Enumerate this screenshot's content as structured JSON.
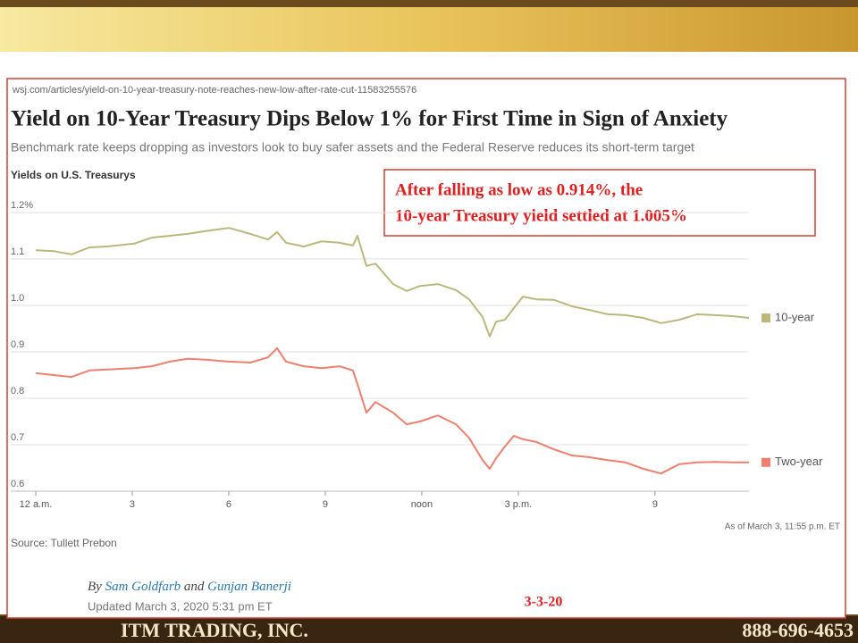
{
  "url": "wsj.com/articles/yield-on-10-year-treasury-note-reaches-new-low-after-rate-cut-11583255576",
  "chart_data": {
    "type": "line",
    "title": "Yield on 10-Year Treasury Dips Below 1% for First Time in Sign of Anxiety",
    "subtitle": "Benchmark rate keeps dropping as investors look to buy safer assets and the Federal Reserve reduces its short-term target",
    "chart_label": "Yields on U.S. Treasurys",
    "x": [
      0,
      0.56,
      1.11,
      1.67,
      2.22,
      3.06,
      3.61,
      4.17,
      4.72,
      5.28,
      6,
      6.67,
      7.22,
      7.5,
      7.78,
      8.33,
      8.89,
      9.44,
      9.86,
      10,
      10.28,
      10.56,
      11.11,
      11.53,
      11.94,
      12.5,
      13.06,
      13.47,
      13.89,
      14.11,
      14.31,
      14.58,
      14.86,
      15.14,
      15.56,
      16.11,
      16.67,
      17.22,
      17.78,
      18.33,
      18.89,
      19.44,
      20,
      20.56,
      21.11,
      21.67,
      22.17
    ],
    "series": [
      {
        "name": "10-year",
        "color": "#bdb77b",
        "values": [
          1.119,
          1.117,
          1.11,
          1.125,
          1.127,
          1.133,
          1.146,
          1.15,
          1.154,
          1.16,
          1.167,
          1.154,
          1.142,
          1.158,
          1.135,
          1.127,
          1.138,
          1.135,
          1.129,
          1.15,
          1.085,
          1.09,
          1.046,
          1.031,
          1.042,
          1.046,
          1.033,
          1.013,
          0.975,
          0.933,
          0.965,
          0.969,
          0.994,
          1.019,
          1.013,
          1.012,
          0.998,
          0.99,
          0.981,
          0.979,
          0.973,
          0.962,
          0.969,
          0.981,
          0.979,
          0.977,
          0.973
        ]
      },
      {
        "name": "Two-year",
        "color": "#ef7f6e",
        "values": [
          0.854,
          0.85,
          0.846,
          0.86,
          0.862,
          0.865,
          0.869,
          0.879,
          0.885,
          0.883,
          0.879,
          0.877,
          0.888,
          0.908,
          0.879,
          0.869,
          0.865,
          0.869,
          0.86,
          0.831,
          0.769,
          0.792,
          0.769,
          0.744,
          0.75,
          0.763,
          0.744,
          0.715,
          0.667,
          0.648,
          0.671,
          0.696,
          0.719,
          0.712,
          0.706,
          0.69,
          0.677,
          0.673,
          0.667,
          0.662,
          0.648,
          0.638,
          0.658,
          0.662,
          0.663,
          0.662,
          0.662
        ]
      }
    ],
    "xlim": [
      0,
      22.17
    ],
    "xticks": [
      {
        "value": 0,
        "label": "12 a.m."
      },
      3,
      6,
      9,
      {
        "value": 12,
        "label": "noon"
      },
      {
        "value": 15,
        "label": "3 p.m."
      },
      {
        "value": 19.25,
        "label": "9"
      }
    ],
    "ylim": [
      0.6,
      1.2
    ],
    "yticks": [
      0.6,
      0.7,
      0.8,
      0.9,
      {
        "value": 1.0,
        "label": "1.0"
      },
      1.1,
      {
        "value": 1.2,
        "label": "1.2%"
      }
    ],
    "grid": true,
    "as_of": "As of March 3, 11:55 p.m. ET",
    "source": "Source: Tullett Prebon"
  },
  "annotation": [
    "After falling as low as 0.914%, the",
    "10-year Treasury yield settled at 1.005%"
  ],
  "byline": {
    "prefix": "By",
    "author1": "Sam Goldfarb",
    "joiner": "and",
    "author2": "Gunjan Banerji"
  },
  "updated": "Updated March 3, 2020 5:31 pm ET",
  "date_note": "3-3-20",
  "footer": {
    "company": "ITM TRADING, INC.",
    "phone": "888-696-4653"
  }
}
